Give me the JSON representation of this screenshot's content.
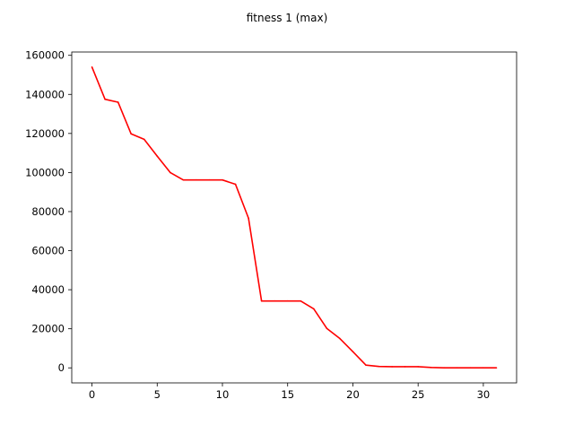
{
  "chart_data": {
    "type": "line",
    "title": "fitness 1 (max)",
    "xlabel": "",
    "ylabel": "",
    "xlim": [
      -1.55,
      32.55
    ],
    "ylim": [
      -7700,
      161700
    ],
    "x_ticks": [
      0,
      5,
      10,
      15,
      20,
      25,
      30
    ],
    "y_ticks": [
      0,
      20000,
      40000,
      60000,
      80000,
      100000,
      120000,
      140000,
      160000
    ],
    "grid": false,
    "legend": "none",
    "series": [
      {
        "color": "#ff0000",
        "x": [
          0,
          1,
          2,
          3,
          4,
          5,
          6,
          7,
          8,
          9,
          10,
          11,
          12,
          13,
          14,
          15,
          16,
          17,
          18,
          19,
          20,
          21,
          22,
          23,
          24,
          25,
          26,
          27,
          28,
          29,
          30,
          31
        ],
        "y": [
          154000,
          137500,
          136000,
          119800,
          117000,
          108400,
          100000,
          96200,
          96200,
          96200,
          96200,
          94000,
          76600,
          34200,
          34200,
          34200,
          34200,
          30200,
          20200,
          15000,
          8300,
          1400,
          700,
          600,
          600,
          600,
          200,
          0,
          0,
          0,
          0,
          0
        ]
      }
    ]
  }
}
